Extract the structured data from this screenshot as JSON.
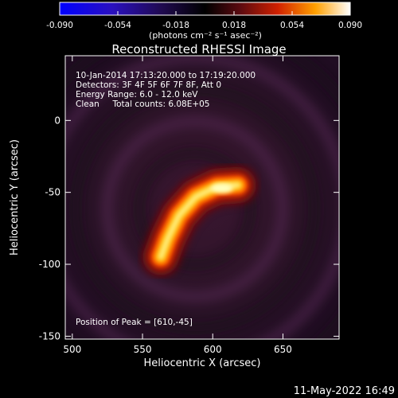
{
  "chart_data": {
    "type": "heatmap",
    "title": "Reconstructed RHESSI Image",
    "xlabel": "Heliocentric X (arcsec)",
    "ylabel": "Heliocentric Y (arcsec)",
    "xlim": [
      495,
      690
    ],
    "ylim": [
      -152,
      45
    ],
    "x_ticks": [
      500,
      550,
      600,
      650
    ],
    "y_ticks": [
      0,
      -50,
      -100,
      -150
    ],
    "colorbar": {
      "range": [
        -0.09,
        0.09
      ],
      "ticks": [
        "-0.090",
        "-0.054",
        "-0.018",
        "0.018",
        "0.054",
        "0.090"
      ],
      "label": "(photons cm⁻² s⁻¹ asec⁻²)",
      "colormap": [
        "#0000ff",
        "#3a0a8a",
        "#000000",
        "#5a0000",
        "#d82000",
        "#ff9a00",
        "#ffffff"
      ]
    },
    "info_lines": [
      "10-Jan-2014 17:13:20.000 to 17:19:20.000",
      "Detectors: 3F 4F 5F 6F 7F 8F, Att 0",
      "Energy Range: 6.0 - 12.0 keV",
      "Clean     Total counts: 6.08E+05"
    ],
    "peak_label": "Position of Peak = [610,-45]",
    "peak": [
      610,
      -45
    ],
    "source_ridge": [
      [
        563,
        -95
      ],
      [
        568,
        -82
      ],
      [
        576,
        -66
      ],
      [
        588,
        -53
      ],
      [
        603,
        -46
      ],
      [
        618,
        -45
      ]
    ],
    "background_level": 0.006
  },
  "footer": {
    "timestamp": "11-May-2022 16:49"
  }
}
